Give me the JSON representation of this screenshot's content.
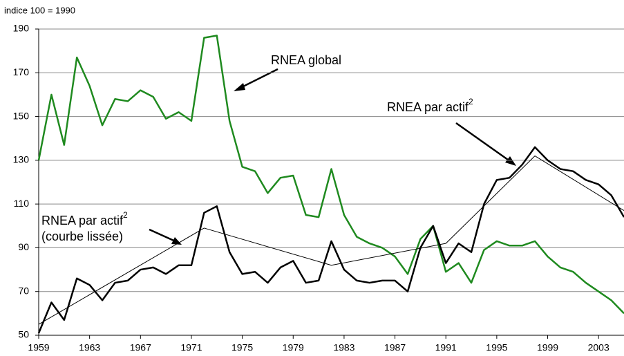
{
  "chart_data": {
    "type": "line",
    "subtitle": "indice 100 = 1990",
    "xlim": [
      1959,
      2005
    ],
    "xticks": [
      1959,
      1963,
      1967,
      1971,
      1975,
      1979,
      1983,
      1987,
      1991,
      1995,
      1999,
      2003
    ],
    "ylim": [
      50,
      190
    ],
    "yticks": [
      50,
      70,
      90,
      110,
      130,
      150,
      170,
      190
    ],
    "grid": true,
    "footnote_mark": "2",
    "smoothed_label": "(courbe lissée)",
    "x": [
      1959,
      1960,
      1961,
      1962,
      1963,
      1964,
      1965,
      1966,
      1967,
      1968,
      1969,
      1970,
      1971,
      1972,
      1973,
      1974,
      1975,
      1976,
      1977,
      1978,
      1979,
      1980,
      1981,
      1982,
      1983,
      1984,
      1985,
      1986,
      1987,
      1988,
      1989,
      1990,
      1991,
      1992,
      1993,
      1994,
      1995,
      1996,
      1997,
      1998,
      1999,
      2000,
      2001,
      2002,
      2003,
      2004,
      2005
    ],
    "series": [
      {
        "name": "RNEA global",
        "color": "#1f8a1f",
        "width": 2.5,
        "values": [
          130,
          160,
          137,
          177,
          164,
          146,
          158,
          157,
          162,
          159,
          149,
          152,
          148,
          186,
          187,
          148,
          127,
          125,
          115,
          122,
          123,
          105,
          104,
          126,
          105,
          95,
          92,
          90,
          86,
          78,
          94,
          100,
          79,
          83,
          74,
          89,
          93,
          91,
          91,
          93,
          86,
          81,
          79,
          74,
          70,
          66,
          60
        ]
      },
      {
        "name": "RNEA par actif",
        "color": "#000000",
        "width": 2.5,
        "values": [
          51,
          65,
          57,
          76,
          73,
          66,
          74,
          75,
          80,
          81,
          78,
          82,
          82,
          106,
          109,
          88,
          78,
          79,
          74,
          81,
          84,
          74,
          75,
          93,
          80,
          75,
          74,
          75,
          75,
          70,
          90,
          100,
          83,
          92,
          88,
          110,
          121,
          122,
          128,
          136,
          130,
          126,
          125,
          121,
          119,
          114,
          104
        ]
      },
      {
        "name": "RNEA par actif",
        "color": "#000000",
        "width": 1,
        "x": [
          1959,
          1972,
          1982,
          1991,
          1998,
          2005
        ],
        "values": [
          55,
          99,
          82,
          92,
          132,
          107
        ]
      }
    ]
  }
}
